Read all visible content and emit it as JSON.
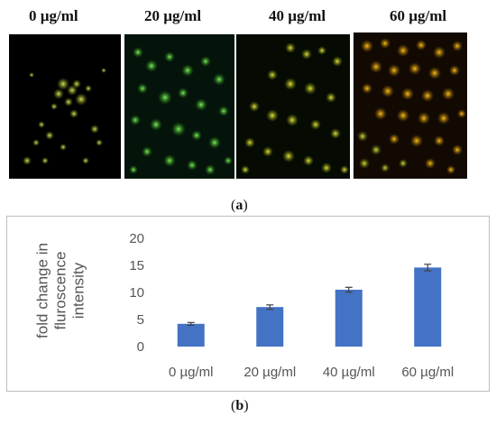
{
  "panel_a": {
    "labels": [
      "0 µg/ml",
      "20 µg/ml",
      "40 µg/ml",
      "60 µg/ml"
    ],
    "caption_open": "(",
    "caption_letter": "a",
    "caption_close": ")"
  },
  "panel_b": {
    "caption_open": "(",
    "caption_letter": "b",
    "caption_close": ")"
  },
  "chart_data": {
    "type": "bar",
    "categories": [
      "0 µg/ml",
      "20 µg/ml",
      "40 µg/ml",
      "60 µg/ml"
    ],
    "values": [
      4.2,
      7.3,
      10.5,
      14.6
    ],
    "errors": [
      0.25,
      0.4,
      0.45,
      0.6
    ],
    "ylabel_lines": [
      "fold change in",
      "fluroscence",
      "intensity"
    ],
    "ylim": [
      0,
      20
    ],
    "yticks": [
      "0",
      "5",
      "10",
      "15",
      "20"
    ],
    "grid": false,
    "colors": {
      "bar": "#4472C4",
      "error": "#404040"
    }
  }
}
